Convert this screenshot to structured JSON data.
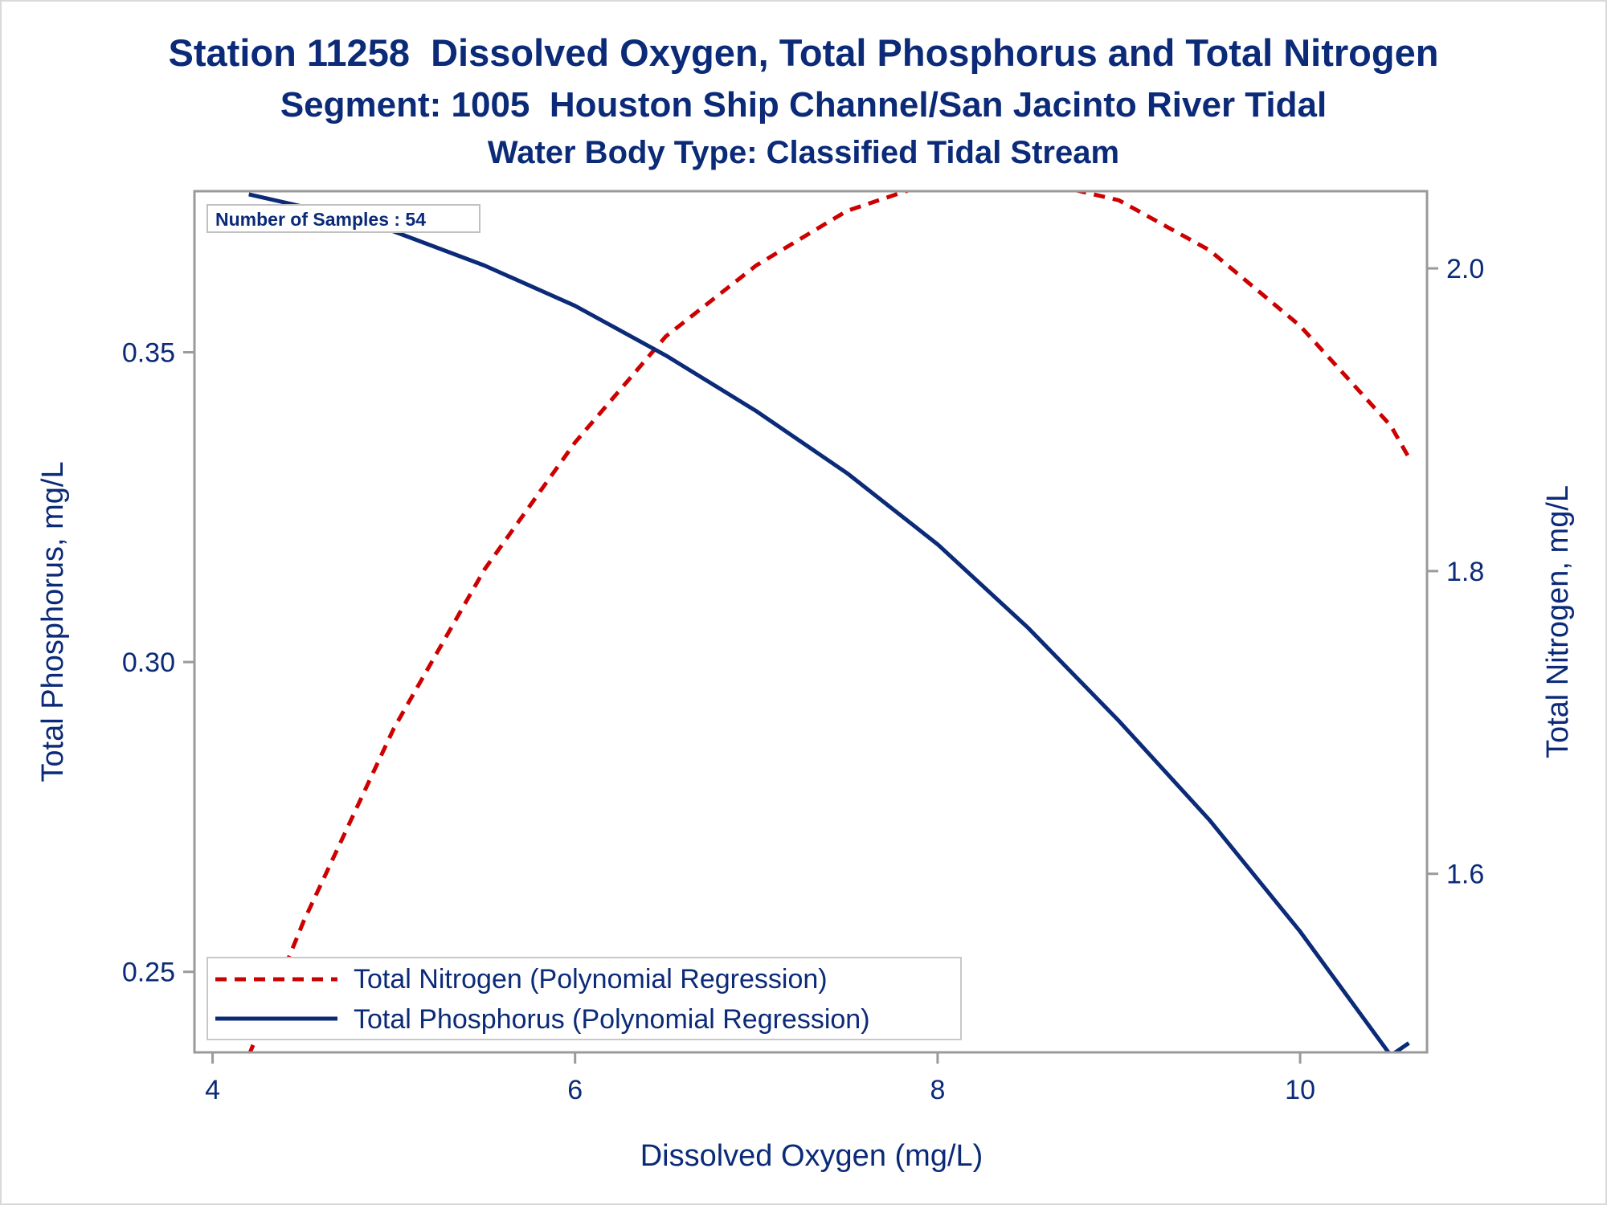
{
  "chart_data": {
    "type": "line",
    "title": "Station 11258  Dissolved Oxygen, Total Phosphorus and Total Nitrogen",
    "subtitle": "Segment: 1005  Houston Ship Channel/San Jacinto River Tidal",
    "subtitle2": "Water Body Type: Classified Tidal Stream",
    "xlabel": "Dissolved Oxygen (mg/L)",
    "ylabel_left": "Total Phosphorus, mg/L",
    "ylabel_right": "Total Nitrogen, mg/L",
    "xlim": [
      3.9,
      10.7
    ],
    "ylim_left": [
      0.237,
      0.376
    ],
    "ylim_right": [
      1.482,
      2.051
    ],
    "x_ticks": [
      4,
      6,
      8,
      10
    ],
    "y_left_ticks": [
      "0.25",
      "0.30",
      "0.35"
    ],
    "y_right_ticks": [
      "1.6",
      "1.8",
      "2.0"
    ],
    "inset_label": "Number of Samples : 54",
    "legend_position": "bottom-left",
    "grid": false,
    "series": [
      {
        "name": "Total Nitrogen (Polynomial Regression)",
        "axis": "right",
        "color": "#cc0000",
        "style": "dashed",
        "x": [
          4.2,
          4.5,
          5.0,
          5.5,
          6.0,
          6.5,
          7.0,
          7.5,
          8.0,
          8.3,
          8.5,
          9.0,
          9.5,
          10.0,
          10.5,
          10.6
        ],
        "y": [
          1.48,
          1.568,
          1.696,
          1.801,
          1.885,
          1.955,
          2.002,
          2.038,
          2.058,
          2.061,
          2.059,
          2.045,
          2.012,
          1.962,
          1.896,
          1.875
        ]
      },
      {
        "name": "Total Phosphorus (Polynomial Regression)",
        "axis": "left",
        "color": "#0b2a78",
        "style": "solid",
        "x": [
          4.2,
          4.5,
          5.0,
          5.5,
          6.0,
          6.5,
          7.0,
          7.5,
          8.0,
          8.5,
          9.0,
          9.5,
          10.0,
          10.5,
          10.6
        ],
        "y": [
          0.3755,
          0.3735,
          0.3695,
          0.364,
          0.3575,
          0.3495,
          0.3405,
          0.3305,
          0.319,
          0.3055,
          0.2905,
          0.2745,
          0.2565,
          0.2365,
          0.2385
        ]
      }
    ]
  }
}
